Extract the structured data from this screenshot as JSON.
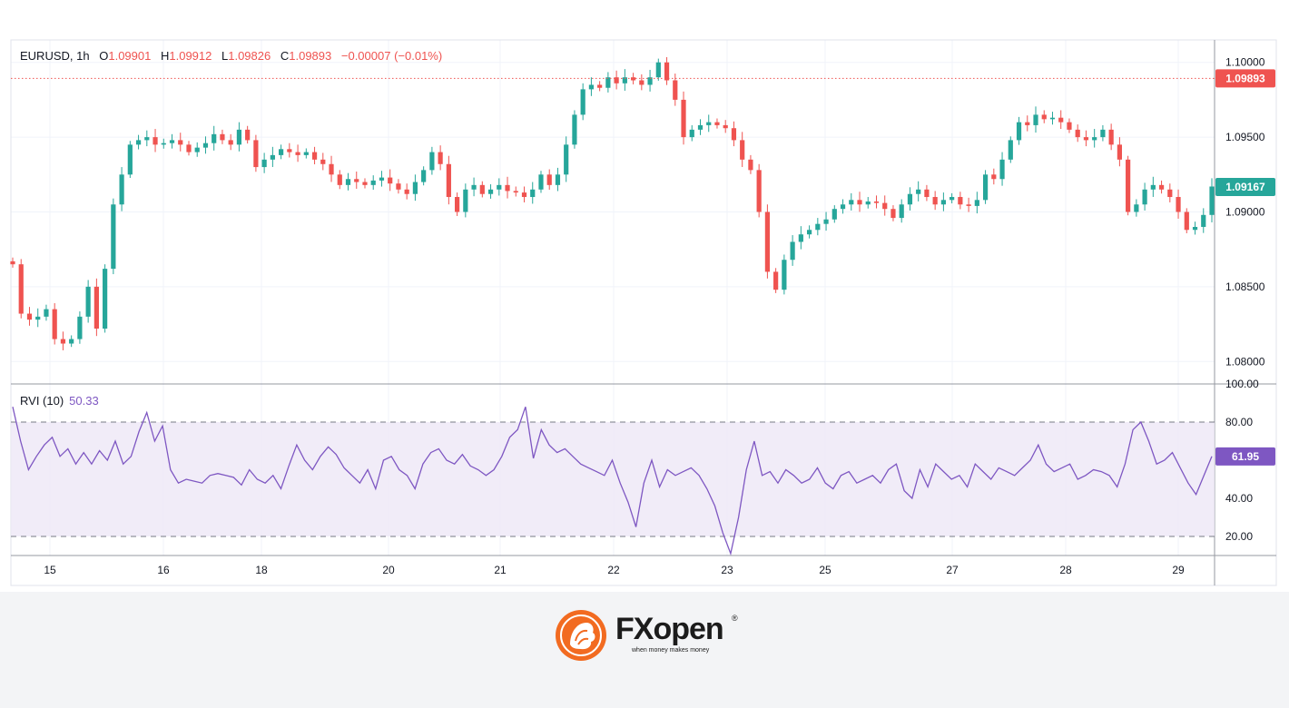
{
  "legend": {
    "symbol": "EURUSD",
    "interval": "1h",
    "o_label": "O",
    "o_value": "1.09901",
    "h_label": "H",
    "h_value": "1.09912",
    "l_label": "L",
    "l_value": "1.09826",
    "c_label": "C",
    "c_value": "1.09893",
    "change": "−0.00007 (−0.01%)"
  },
  "rvi_legend": {
    "name": "RVI (10)",
    "value": "50.33"
  },
  "price_axis": {
    "ticks": [
      "1.10000",
      "1.09500",
      "1.09000",
      "1.08500",
      "1.08000"
    ]
  },
  "rvi_axis": {
    "ticks": [
      "100.00",
      "80.00",
      "40.00",
      "20.00"
    ]
  },
  "time_axis": {
    "ticks": [
      "15",
      "16",
      "18",
      "20",
      "21",
      "22",
      "23",
      "25",
      "27",
      "28",
      "29"
    ]
  },
  "badges": {
    "close_price": "1.09893",
    "last_price": "1.09167",
    "rvi_value": "61.95"
  },
  "colors": {
    "up": "#26a69a",
    "down": "#ef5350",
    "rvi": "#7e57c2",
    "band": "#ede7f6"
  },
  "logo": {
    "name": "FXopen",
    "tagline": "when money makes money",
    "mark": "®"
  },
  "chart_data": [
    {
      "type": "candlestick",
      "symbol": "EURUSD",
      "interval": "1h",
      "ylim": [
        1.0785,
        1.1015
      ],
      "x_ticks": [
        "15",
        "16",
        "18",
        "20",
        "21",
        "22",
        "23",
        "25",
        "27",
        "28",
        "29"
      ],
      "close_line": 1.09893,
      "series_close": [
        1.0865,
        1.0832,
        1.0828,
        1.083,
        1.0835,
        1.0815,
        1.0812,
        1.0815,
        1.083,
        1.085,
        1.0822,
        1.0862,
        1.0905,
        1.0925,
        1.0945,
        1.0948,
        1.095,
        1.0945,
        1.0946,
        1.0948,
        1.0945,
        1.094,
        1.0943,
        1.0946,
        1.0952,
        1.0948,
        1.0945,
        1.0955,
        1.0948,
        1.093,
        1.0935,
        1.0938,
        1.0942,
        1.094,
        1.0938,
        1.094,
        1.0935,
        1.0932,
        1.0925,
        1.0918,
        1.0922,
        1.092,
        1.0918,
        1.0921,
        1.0923,
        1.0919,
        1.0915,
        1.0912,
        1.092,
        1.0928,
        1.094,
        1.0932,
        1.091,
        1.09,
        1.0915,
        1.0918,
        1.0912,
        1.0915,
        1.0918,
        1.0914,
        1.0913,
        1.091,
        1.0915,
        1.0925,
        1.0918,
        1.0925,
        1.0945,
        1.0965,
        1.0982,
        1.0985,
        1.0983,
        1.099,
        1.0986,
        1.099,
        1.0988,
        1.0985,
        1.099,
        1.1,
        1.0988,
        1.0975,
        1.095,
        1.0955,
        1.0958,
        1.096,
        1.0958,
        1.0956,
        1.0948,
        1.0935,
        1.0928,
        1.09,
        1.086,
        1.0848,
        1.0868,
        1.088,
        1.0885,
        1.0888,
        1.0892,
        1.0895,
        1.0902,
        1.0905,
        1.0908,
        1.0905,
        1.0907,
        1.0906,
        1.0902,
        1.0896,
        1.0905,
        1.0912,
        1.0915,
        1.091,
        1.0905,
        1.0908,
        1.091,
        1.0905,
        1.0904,
        1.0908,
        1.0925,
        1.0922,
        1.0935,
        1.0948,
        1.096,
        1.0958,
        1.0965,
        1.0962,
        1.0963,
        1.096,
        1.0955,
        1.095,
        1.0948,
        1.095,
        1.0955,
        1.0945,
        1.0935,
        1.09,
        1.0905,
        1.0915,
        1.0918,
        1.0915,
        1.091,
        1.09,
        1.0888,
        1.089,
        1.0898,
        1.0917
      ]
    },
    {
      "type": "line",
      "name": "RVI (10)",
      "ylim": [
        10,
        100
      ],
      "bands": [
        20,
        80
      ],
      "values": [
        88,
        70,
        55,
        62,
        68,
        72,
        62,
        66,
        58,
        64,
        58,
        65,
        60,
        70,
        58,
        62,
        75,
        85,
        70,
        78,
        55,
        48,
        50,
        49,
        48,
        52,
        53,
        52,
        51,
        47,
        55,
        50,
        48,
        52,
        45,
        57,
        68,
        60,
        55,
        62,
        67,
        63,
        56,
        52,
        48,
        55,
        45,
        60,
        62,
        55,
        52,
        45,
        58,
        64,
        66,
        60,
        58,
        63,
        57,
        55,
        52,
        55,
        62,
        72,
        76,
        88,
        61,
        76,
        68,
        64,
        66,
        62,
        58,
        56,
        54,
        52,
        60,
        48,
        38,
        25,
        48,
        60,
        46,
        55,
        52,
        54,
        56,
        52,
        45,
        36,
        22,
        11,
        30,
        55,
        70,
        52,
        54,
        48,
        55,
        52,
        48,
        50,
        56,
        48,
        45,
        52,
        54,
        48,
        50,
        52,
        48,
        55,
        58,
        44,
        40,
        55,
        46,
        58,
        54,
        50,
        52,
        46,
        58,
        54,
        50,
        56,
        54,
        52,
        56,
        60,
        68,
        58,
        54,
        56,
        58,
        50,
        52,
        55,
        54,
        52,
        46,
        58,
        76,
        80,
        70,
        58,
        60,
        64,
        56,
        48,
        42,
        52,
        62
      ]
    }
  ]
}
